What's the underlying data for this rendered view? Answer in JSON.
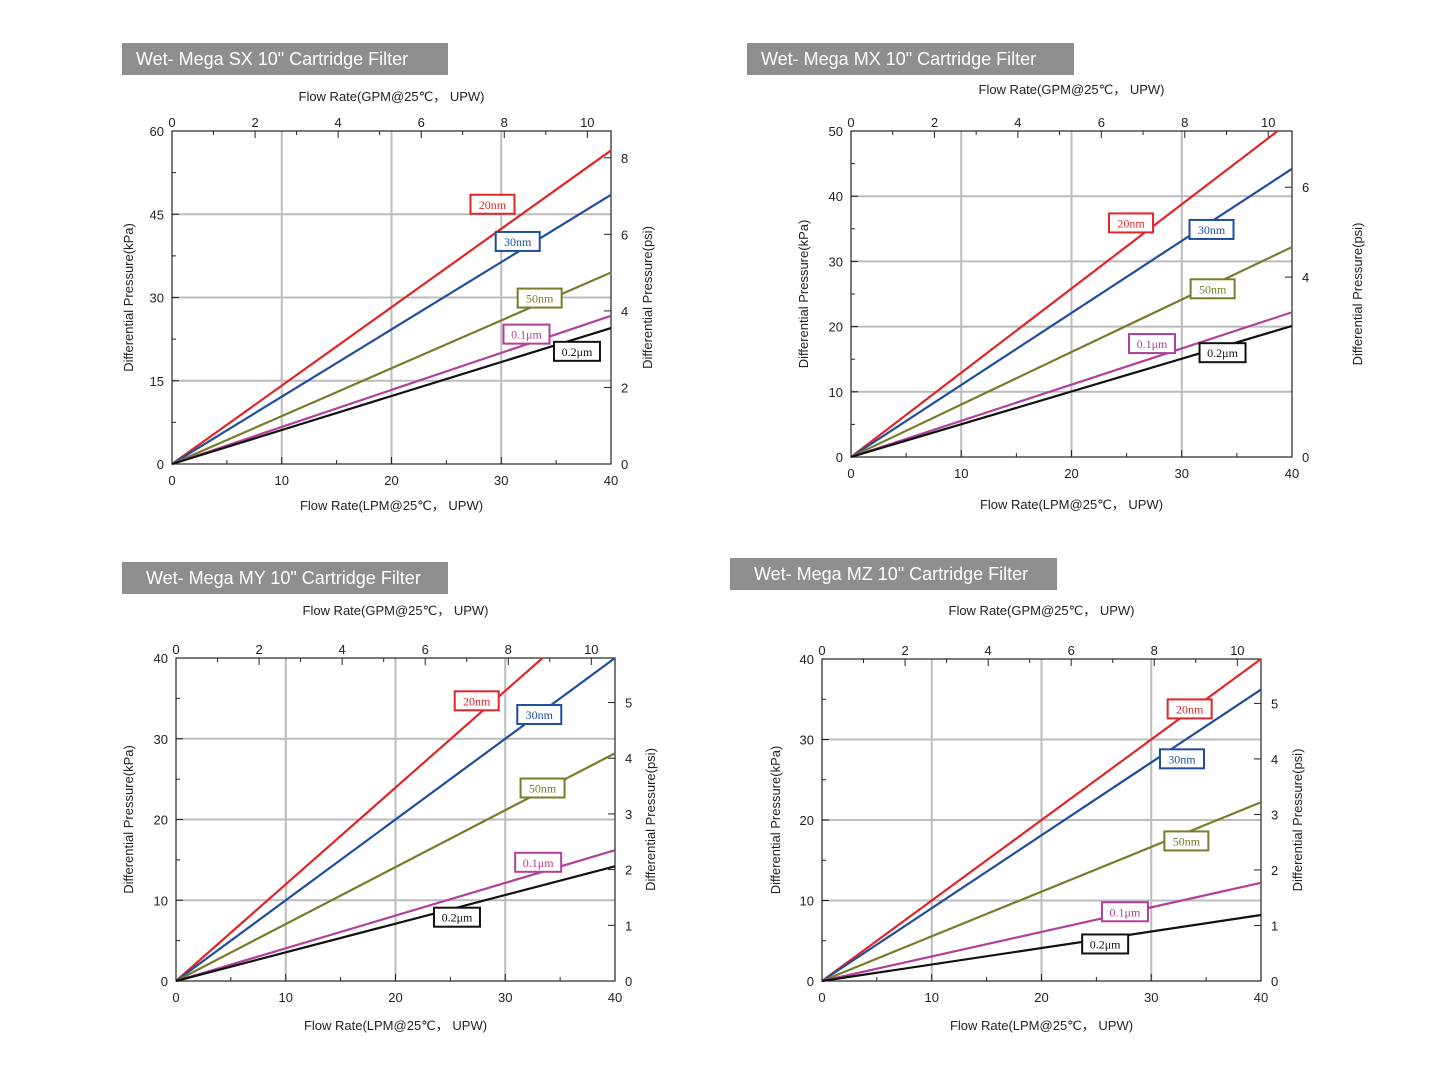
{
  "chart_data": [
    {
      "type": "line",
      "title": "Wet- Mega SX 10\" Cartridge Filter",
      "xlabel": "Flow Rate(LPM@25℃， UPW)",
      "x2label": "Flow Rate(GPM@25℃， UPW)",
      "ylabel": "Differential Pressure(kPa)",
      "y2label": "Differential Pressure(psi)",
      "xlim": [
        0,
        40
      ],
      "ylim": [
        0,
        60
      ],
      "x2lim": [
        0,
        10.57
      ],
      "y2lim": [
        0,
        8.7
      ],
      "xticks": [
        0,
        10,
        20,
        30,
        40
      ],
      "yticks": [
        0,
        15,
        30,
        45,
        60
      ],
      "x2ticks": [
        0,
        2,
        4,
        6,
        8,
        10
      ],
      "y2ticks": [
        0,
        2,
        4,
        6,
        8
      ],
      "grid": true,
      "series": [
        {
          "name": "20nm",
          "color": "#e0262a",
          "x": [
            0,
            40
          ],
          "y": [
            0,
            56.5
          ],
          "label_at": [
            29.2,
            46.8
          ]
        },
        {
          "name": "30nm",
          "color": "#1f4e9c",
          "x": [
            0,
            40
          ],
          "y": [
            0,
            48.5
          ],
          "label_at": [
            31.5,
            40.1
          ]
        },
        {
          "name": "50nm",
          "color": "#7a7a2c",
          "x": [
            0,
            40
          ],
          "y": [
            0,
            34.5
          ],
          "label_at": [
            33.5,
            29.9
          ]
        },
        {
          "name": "0.1μm",
          "color": "#b0409a",
          "x": [
            0,
            40
          ],
          "y": [
            0,
            26.7
          ],
          "label_at": [
            32.3,
            23.4
          ]
        },
        {
          "name": "0.2μm",
          "color": "#111111",
          "x": [
            0,
            40
          ],
          "y": [
            0,
            24.5
          ],
          "label_at": [
            36.9,
            20.3
          ]
        }
      ]
    },
    {
      "type": "line",
      "title": "Wet- Mega  MX 10\" Cartridge Filter",
      "xlabel": "Flow Rate(LPM@25℃， UPW)",
      "x2label": "Flow Rate(GPM@25℃， UPW)",
      "ylabel": "Differential Pressure(kPa)",
      "y2label": "Differential Pressure(psi)",
      "xlim": [
        0,
        40
      ],
      "ylim": [
        0,
        50
      ],
      "x2lim": [
        0,
        10.57
      ],
      "y2lim": [
        0,
        7.25
      ],
      "xticks": [
        0,
        10,
        20,
        30,
        40
      ],
      "yticks": [
        0,
        10,
        20,
        30,
        40,
        50
      ],
      "x2ticks": [
        0,
        2,
        4,
        6,
        8,
        10
      ],
      "y2ticks": [
        0,
        4,
        6
      ],
      "grid": true,
      "series": [
        {
          "name": "20nm",
          "color": "#e0262a",
          "x": [
            0,
            38.7
          ],
          "y": [
            0,
            50
          ],
          "label_at": [
            25.4,
            35.9
          ]
        },
        {
          "name": "30nm",
          "color": "#1f4e9c",
          "x": [
            0,
            40
          ],
          "y": [
            0,
            44.2
          ],
          "label_at": [
            32.7,
            34.9
          ]
        },
        {
          "name": "50nm",
          "color": "#7a7a2c",
          "x": [
            0,
            40
          ],
          "y": [
            0,
            32.2
          ],
          "label_at": [
            32.8,
            25.8
          ]
        },
        {
          "name": "0.1μm",
          "color": "#b0409a",
          "x": [
            0,
            40
          ],
          "y": [
            0,
            22.2
          ],
          "label_at": [
            27.3,
            17.4
          ]
        },
        {
          "name": "0.2μm",
          "color": "#111111",
          "x": [
            0,
            40
          ],
          "y": [
            0,
            20.1
          ],
          "label_at": [
            33.7,
            16.0
          ]
        }
      ]
    },
    {
      "type": "line",
      "title": "Wet- Mega MY 10\" Cartridge Filter",
      "xlabel": "Flow Rate(LPM@25℃， UPW)",
      "x2label": "Flow Rate(GPM@25℃， UPW)",
      "ylabel": "Differential Pressure(kPa)",
      "y2label": "Differential Pressure(psi)",
      "xlim": [
        0,
        40
      ],
      "ylim": [
        0,
        40
      ],
      "x2lim": [
        0,
        10.57
      ],
      "y2lim": [
        0,
        5.8
      ],
      "xticks": [
        0,
        10,
        20,
        30,
        40
      ],
      "yticks": [
        0,
        10,
        20,
        30,
        40
      ],
      "x2ticks": [
        0,
        2,
        4,
        6,
        8,
        10
      ],
      "y2ticks": [
        0,
        1,
        2,
        3,
        4,
        5
      ],
      "grid": true,
      "series": [
        {
          "name": "20nm",
          "color": "#e0262a",
          "x": [
            0,
            33.4
          ],
          "y": [
            0,
            40
          ],
          "label_at": [
            27.4,
            34.7
          ]
        },
        {
          "name": "30nm",
          "color": "#1f4e9c",
          "x": [
            0,
            40
          ],
          "y": [
            0,
            40
          ],
          "label_at": [
            33.1,
            33.0
          ]
        },
        {
          "name": "50nm",
          "color": "#7a7a2c",
          "x": [
            0,
            40
          ],
          "y": [
            0,
            28.2
          ],
          "label_at": [
            33.4,
            23.9
          ]
        },
        {
          "name": "0.1μm",
          "color": "#b0409a",
          "x": [
            0,
            40
          ],
          "y": [
            0,
            16.2
          ],
          "label_at": [
            33.0,
            14.7
          ]
        },
        {
          "name": "0.2μm",
          "color": "#111111",
          "x": [
            0,
            40
          ],
          "y": [
            0,
            14.2
          ],
          "label_at": [
            25.6,
            7.9
          ]
        }
      ]
    },
    {
      "type": "line",
      "title": "Wet- Mega MZ 10\" Cartridge Filter",
      "xlabel": "Flow Rate(LPM@25℃， UPW)",
      "x2label": "Flow Rate(GPM@25℃， UPW)",
      "ylabel": "Differential Pressure(kPa)",
      "y2label": "Differential Pressure(psi)",
      "xlim": [
        0,
        40
      ],
      "ylim": [
        0,
        40
      ],
      "x2lim": [
        0,
        10.57
      ],
      "y2lim": [
        0,
        5.8
      ],
      "xticks": [
        0,
        10,
        20,
        30,
        40
      ],
      "yticks": [
        0,
        10,
        20,
        30,
        40
      ],
      "x2ticks": [
        0,
        2,
        4,
        6,
        8,
        10
      ],
      "y2ticks": [
        0,
        1,
        2,
        3,
        4,
        5
      ],
      "grid": true,
      "series": [
        {
          "name": "20nm",
          "color": "#e0262a",
          "x": [
            0,
            40
          ],
          "y": [
            0,
            40
          ],
          "label_at": [
            33.5,
            33.8
          ]
        },
        {
          "name": "30nm",
          "color": "#1f4e9c",
          "x": [
            0,
            40
          ],
          "y": [
            0,
            36.2
          ],
          "label_at": [
            32.8,
            27.6
          ]
        },
        {
          "name": "50nm",
          "color": "#7a7a2c",
          "x": [
            0,
            40
          ],
          "y": [
            0,
            22.2
          ],
          "label_at": [
            33.2,
            17.4
          ]
        },
        {
          "name": "0.1μm",
          "color": "#b0409a",
          "x": [
            0,
            40
          ],
          "y": [
            0,
            12.2
          ],
          "label_at": [
            27.6,
            8.6
          ]
        },
        {
          "name": "0.2μm",
          "color": "#111111",
          "x": [
            0,
            40
          ],
          "y": [
            0,
            8.2
          ],
          "label_at": [
            25.8,
            4.6
          ]
        }
      ]
    }
  ]
}
